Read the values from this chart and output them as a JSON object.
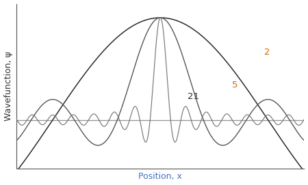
{
  "xlabel": "Position, x",
  "ylabel": "Wavefunction, ψ",
  "label_2": "2",
  "label_5": "5",
  "label_21": "21",
  "color_2": "#2a2a2a",
  "color_5": "#555555",
  "color_21": "#777777",
  "color_baseline": "#999999",
  "label_color_2": "#cc6600",
  "label_color_5": "#cc6600",
  "label_color_21": "#2a2a2a",
  "x_range": [
    -15,
    15
  ],
  "n_points": 4000,
  "figsize": [
    4.5,
    2.71
  ],
  "dpi": 100,
  "xlabel_color": "#4472c4"
}
